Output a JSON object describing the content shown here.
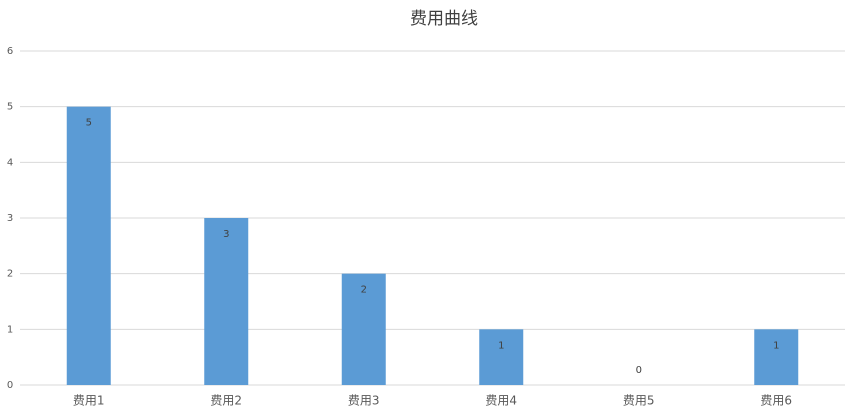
{
  "chart_data": {
    "type": "bar",
    "title": "费用曲线",
    "categories": [
      "费用1",
      "费用2",
      "费用3",
      "费用4",
      "费用5",
      "费用6"
    ],
    "values": [
      5,
      3,
      2,
      1,
      0,
      1
    ],
    "color": "#5b9bd5",
    "ylim": [
      0,
      6
    ],
    "yticks": [
      0,
      1,
      2,
      3,
      4,
      5,
      6
    ],
    "grid": true
  }
}
